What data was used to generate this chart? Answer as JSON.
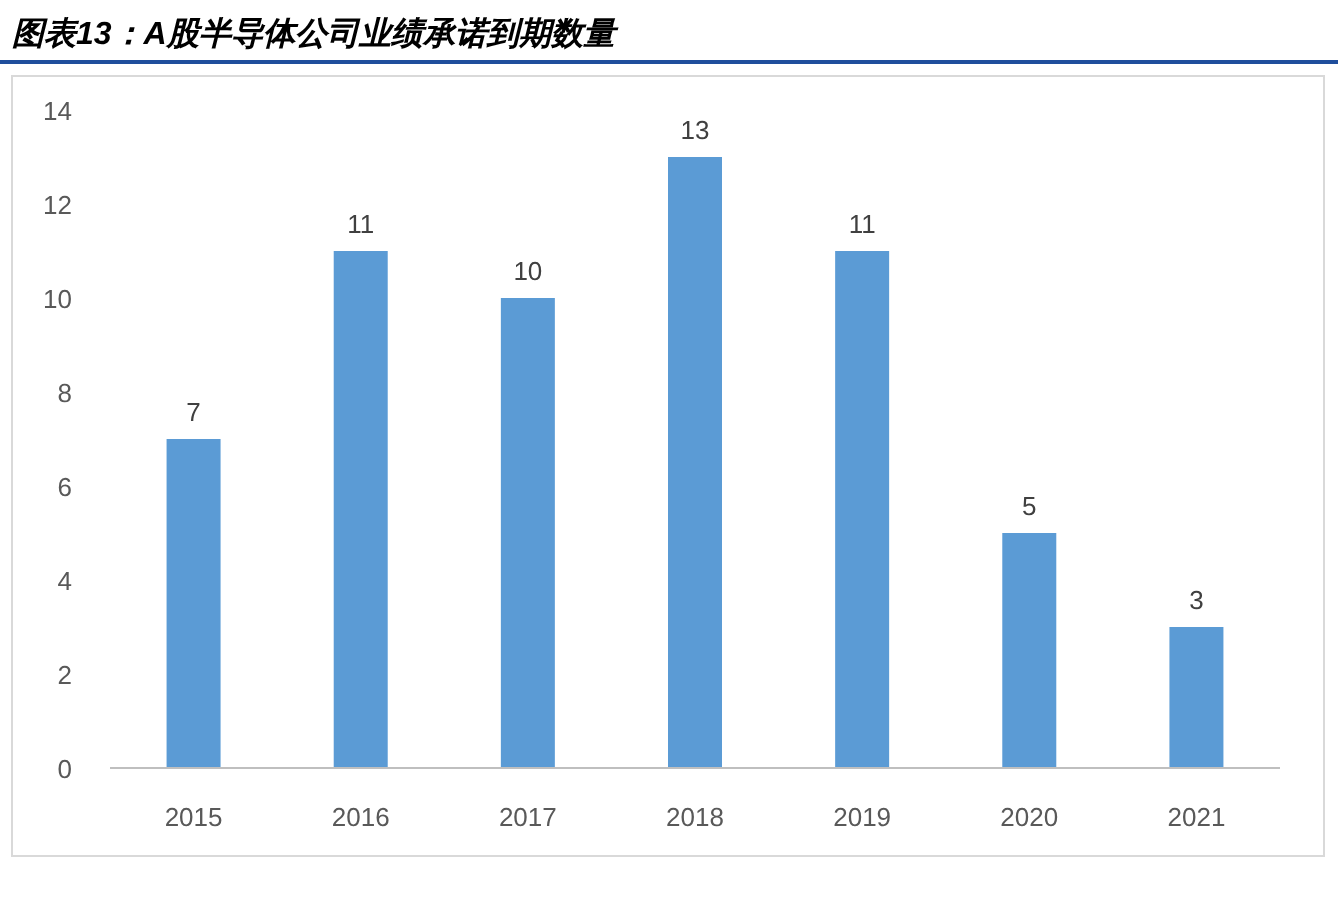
{
  "chart_data": {
    "type": "bar",
    "title": "图表13：A股半导体公司业绩承诺到期数量",
    "categories": [
      "2015",
      "2016",
      "2017",
      "2018",
      "2019",
      "2020",
      "2021"
    ],
    "values": [
      7,
      11,
      10,
      13,
      11,
      5,
      3
    ],
    "color": "#5b9bd5",
    "ylim": [
      0,
      14
    ],
    "yticks": [
      0,
      2,
      4,
      6,
      8,
      10,
      12,
      14
    ],
    "data_labels": true,
    "grid": false
  }
}
